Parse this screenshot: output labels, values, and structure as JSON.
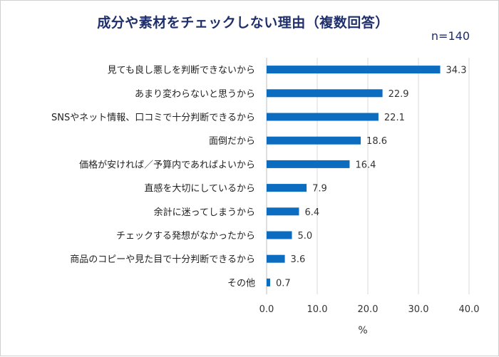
{
  "chart_data": {
    "type": "bar",
    "orientation": "horizontal",
    "title": "成分や素材をチェックしない理由（複数回答）",
    "note": "n=140",
    "categories": [
      "見ても良し悪しを判断できないから",
      "あまり変わらないと思うから",
      "SNSやネット情報、口コミで十分判断できるから",
      "面倒だから",
      "価格が安ければ／予算内であればよいから",
      "直感を大切にしているから",
      "余計に迷ってしまうから",
      "チェックする発想がなかったから",
      "商品のコピーや見た目で十分判断できるから",
      "その他"
    ],
    "values": [
      34.3,
      22.9,
      22.1,
      18.6,
      16.4,
      7.9,
      6.4,
      5.0,
      3.6,
      0.7
    ],
    "value_labels": [
      "34.3",
      "22.9",
      "22.1",
      "18.6",
      "16.4",
      "7.9",
      "6.4",
      "5.0",
      "3.6",
      "0.7"
    ],
    "xlabel": "%",
    "xlim": [
      0,
      40
    ],
    "xticks": [
      "0.0",
      "10.0",
      "20.0",
      "30.0",
      "40.0"
    ],
    "grid": true,
    "bar_color": "#0b6cc0"
  }
}
